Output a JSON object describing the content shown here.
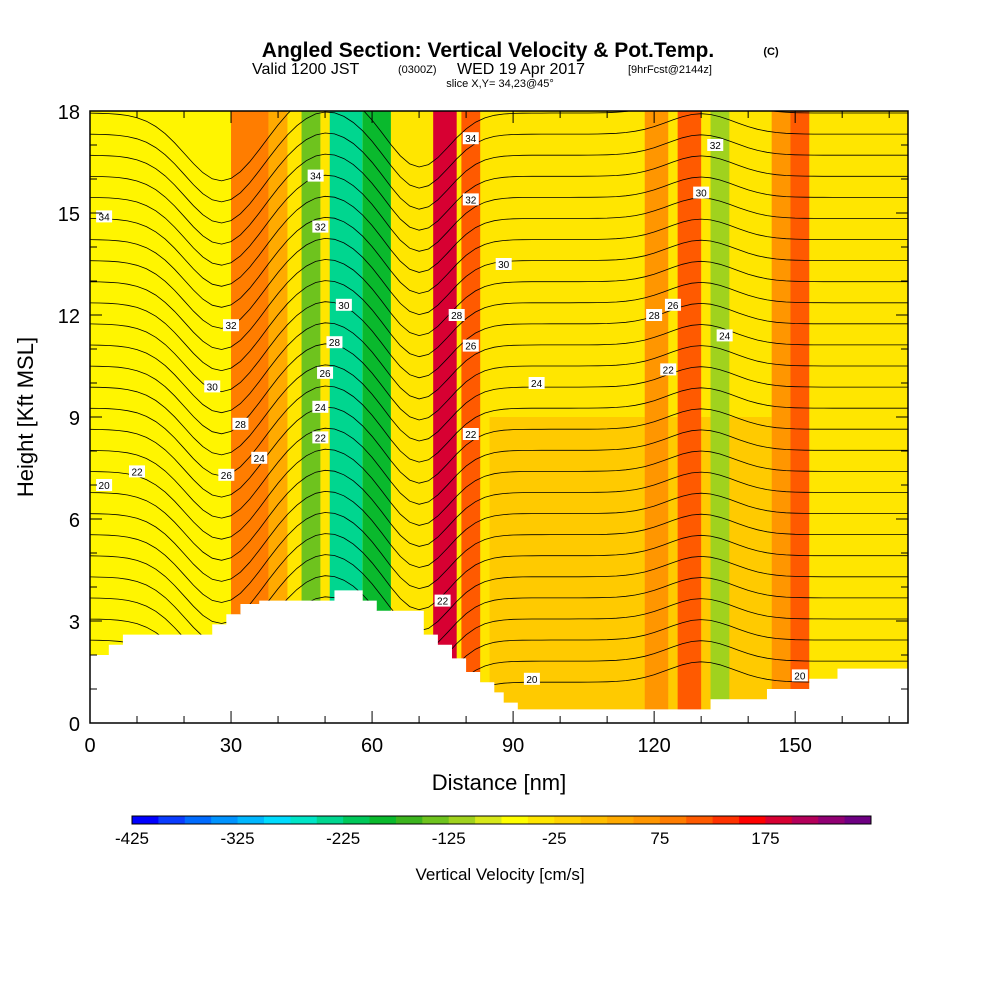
{
  "header": {
    "title": "Angled Section: Vertical Velocity & Pot.Temp.",
    "title_unit": "(C)",
    "valid_prefix": "Valid 1200 JST",
    "valid_utc": "(0300Z)",
    "valid_date": "WED 19 Apr 2017",
    "forecast": "[9hrFcst@2144z]",
    "slice": "slice X,Y= 34,23@45°"
  },
  "chart_data": {
    "type": "heatmap",
    "title": "Angled Section: Vertical Velocity & Pot.Temp.",
    "xlabel": "Distance [nm]",
    "ylabel": "Height [Kft MSL]",
    "xlim": [
      0,
      174
    ],
    "ylim": [
      0,
      18
    ],
    "x_ticks": [
      0,
      30,
      60,
      90,
      120,
      150
    ],
    "y_ticks": [
      0,
      3,
      6,
      9,
      12,
      15,
      18
    ],
    "colorbar": {
      "label": "Vertical Velocity [cm/s]",
      "min": -425,
      "step": 25,
      "tick_values": [
        -425,
        -325,
        -225,
        -125,
        -25,
        75,
        175
      ],
      "tick_labels": [
        "-425",
        "-325",
        "-225",
        "-125",
        "-25",
        "75",
        "175"
      ],
      "colors": [
        "#0000ff",
        "#0a3cff",
        "#006bff",
        "#0093ff",
        "#00b7ff",
        "#00dcff",
        "#00e5c7",
        "#00d68f",
        "#00c85a",
        "#0ab92d",
        "#3cb41e",
        "#6ec31e",
        "#a0d21e",
        "#d7e81a",
        "#ffff00",
        "#ffe600",
        "#ffd200",
        "#ffbe00",
        "#ffaa00",
        "#ff9600",
        "#ff7d00",
        "#ff5a00",
        "#ff3200",
        "#ff0000",
        "#d70032",
        "#b4005a",
        "#910073",
        "#6e0082"
      ]
    },
    "terrain": [
      [
        0,
        2.0
      ],
      [
        4,
        2.0
      ],
      [
        4,
        2.3
      ],
      [
        7,
        2.3
      ],
      [
        7,
        2.6
      ],
      [
        26,
        2.6
      ],
      [
        26,
        2.9
      ],
      [
        29,
        2.9
      ],
      [
        29,
        3.2
      ],
      [
        32,
        3.2
      ],
      [
        32,
        3.5
      ],
      [
        36,
        3.5
      ],
      [
        36,
        3.6
      ],
      [
        52,
        3.6
      ],
      [
        52,
        3.9
      ],
      [
        58,
        3.9
      ],
      [
        58,
        3.6
      ],
      [
        61,
        3.6
      ],
      [
        61,
        3.3
      ],
      [
        71,
        3.3
      ],
      [
        71,
        2.6
      ],
      [
        74,
        2.6
      ],
      [
        74,
        2.3
      ],
      [
        77,
        2.3
      ],
      [
        77,
        1.9
      ],
      [
        80,
        1.9
      ],
      [
        80,
        1.5
      ],
      [
        83,
        1.5
      ],
      [
        83,
        1.2
      ],
      [
        86,
        1.2
      ],
      [
        86,
        0.9
      ],
      [
        88,
        0.9
      ],
      [
        88,
        0.6
      ],
      [
        91,
        0.6
      ],
      [
        91,
        0.4
      ],
      [
        132,
        0.4
      ],
      [
        132,
        0.7
      ],
      [
        144,
        0.7
      ],
      [
        144,
        1.0
      ],
      [
        153,
        1.0
      ],
      [
        153,
        1.3
      ],
      [
        159,
        1.3
      ],
      [
        159,
        1.6
      ],
      [
        174,
        1.6
      ]
    ],
    "vertical_velocity_bands": [
      {
        "x": 30,
        "w": 8,
        "value": 90
      },
      {
        "x": 38,
        "w": 4,
        "value": 30
      },
      {
        "x": 45,
        "w": 4,
        "value": -140
      },
      {
        "x": 51,
        "w": 7,
        "value": -240
      },
      {
        "x": 58,
        "w": 6,
        "value": -180
      },
      {
        "x": 73,
        "w": 5,
        "value": 185
      },
      {
        "x": 79,
        "w": 4,
        "value": 100
      },
      {
        "x": 118,
        "w": 5,
        "value": 60
      },
      {
        "x": 125,
        "w": 5,
        "value": 120
      },
      {
        "x": 132,
        "w": 4,
        "value": -110
      },
      {
        "x": 145,
        "w": 5,
        "value": 70
      },
      {
        "x": 149,
        "w": 4,
        "value": 110
      }
    ],
    "theta_contour_labels": [
      {
        "x": 3,
        "y": 14.9,
        "text": "34"
      },
      {
        "x": 30,
        "y": 11.7,
        "text": "32"
      },
      {
        "x": 26,
        "y": 9.9,
        "text": "30"
      },
      {
        "x": 32,
        "y": 8.8,
        "text": "28"
      },
      {
        "x": 29,
        "y": 7.3,
        "text": "26"
      },
      {
        "x": 36,
        "y": 7.8,
        "text": "24"
      },
      {
        "x": 10,
        "y": 7.4,
        "text": "22"
      },
      {
        "x": 3,
        "y": 7.0,
        "text": "20"
      },
      {
        "x": 48,
        "y": 16.1,
        "text": "34"
      },
      {
        "x": 49,
        "y": 14.6,
        "text": "32"
      },
      {
        "x": 54,
        "y": 12.3,
        "text": "30"
      },
      {
        "x": 52,
        "y": 11.2,
        "text": "28"
      },
      {
        "x": 50,
        "y": 10.3,
        "text": "26"
      },
      {
        "x": 49,
        "y": 9.3,
        "text": "24"
      },
      {
        "x": 49,
        "y": 8.4,
        "text": "22"
      },
      {
        "x": 81,
        "y": 17.2,
        "text": "34"
      },
      {
        "x": 81,
        "y": 15.4,
        "text": "32"
      },
      {
        "x": 88,
        "y": 13.5,
        "text": "30"
      },
      {
        "x": 78,
        "y": 12.0,
        "text": "28"
      },
      {
        "x": 81,
        "y": 11.1,
        "text": "26"
      },
      {
        "x": 95,
        "y": 10.0,
        "text": "24"
      },
      {
        "x": 81,
        "y": 8.5,
        "text": "22"
      },
      {
        "x": 75,
        "y": 3.6,
        "text": "22"
      },
      {
        "x": 94,
        "y": 1.3,
        "text": "20"
      },
      {
        "x": 133,
        "y": 17.0,
        "text": "32"
      },
      {
        "x": 130,
        "y": 15.6,
        "text": "30"
      },
      {
        "x": 120,
        "y": 12.0,
        "text": "28"
      },
      {
        "x": 124,
        "y": 12.3,
        "text": "26"
      },
      {
        "x": 135,
        "y": 11.4,
        "text": "24"
      },
      {
        "x": 123,
        "y": 10.4,
        "text": "22"
      },
      {
        "x": 151,
        "y": 1.4,
        "text": "20"
      }
    ]
  }
}
